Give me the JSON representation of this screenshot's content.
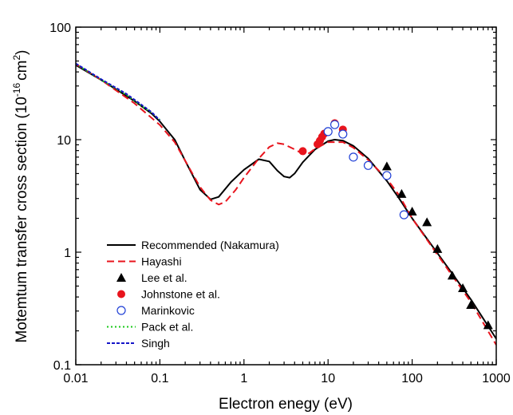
{
  "chart_data": {
    "type": "line",
    "title": "",
    "xlabel": "Electron enegy (eV)",
    "ylabel": {
      "main": "Motemtum transfer cross section (10",
      "exp1": "-16",
      "mid": "cm",
      "exp2": "2",
      "close": ")"
    },
    "x_scale": "log",
    "y_scale": "log",
    "xlim": [
      0.01,
      1000
    ],
    "ylim": [
      0.1,
      100
    ],
    "x_ticks": [
      {
        "value": 0.01,
        "label": "0.01"
      },
      {
        "value": 0.1,
        "label": "0.1"
      },
      {
        "value": 1,
        "label": "1"
      },
      {
        "value": 10,
        "label": "10"
      },
      {
        "value": 100,
        "label": "100"
      },
      {
        "value": 1000,
        "label": "1000"
      }
    ],
    "y_ticks": [
      {
        "value": 0.1,
        "label": "0.1"
      },
      {
        "value": 1,
        "label": "1"
      },
      {
        "value": 10,
        "label": "10"
      },
      {
        "value": 100,
        "label": "100"
      }
    ],
    "grid": false,
    "legend_position": "bottom-left",
    "series": [
      {
        "name": "Recommended (Nakamura)",
        "kind": "line",
        "style": "solid",
        "color": "#000000",
        "points": [
          [
            0.01,
            46
          ],
          [
            0.02,
            34
          ],
          [
            0.05,
            22
          ],
          [
            0.08,
            17
          ],
          [
            0.1,
            14.5
          ],
          [
            0.15,
            10
          ],
          [
            0.2,
            6.5
          ],
          [
            0.3,
            3.6
          ],
          [
            0.4,
            2.95
          ],
          [
            0.5,
            3.1
          ],
          [
            0.7,
            4.2
          ],
          [
            1,
            5.4
          ],
          [
            1.5,
            6.7
          ],
          [
            2,
            6.4
          ],
          [
            2.5,
            5.3
          ],
          [
            3,
            4.7
          ],
          [
            3.5,
            4.6
          ],
          [
            4,
            5.0
          ],
          [
            5,
            6.3
          ],
          [
            7,
            8.2
          ],
          [
            10,
            9.7
          ],
          [
            12,
            10
          ],
          [
            15,
            9.8
          ],
          [
            20,
            8.8
          ],
          [
            30,
            6.8
          ],
          [
            50,
            4.3
          ],
          [
            70,
            3.0
          ],
          [
            100,
            2.0
          ],
          [
            200,
            0.98
          ],
          [
            500,
            0.38
          ],
          [
            1000,
            0.17
          ]
        ]
      },
      {
        "name": "Hayashi",
        "kind": "line",
        "style": "dashed",
        "color": "#e8141d",
        "points": [
          [
            0.01,
            47
          ],
          [
            0.02,
            34
          ],
          [
            0.05,
            21
          ],
          [
            0.1,
            13.5
          ],
          [
            0.15,
            9.5
          ],
          [
            0.2,
            6.5
          ],
          [
            0.3,
            3.8
          ],
          [
            0.4,
            2.9
          ],
          [
            0.5,
            2.65
          ],
          [
            0.6,
            2.8
          ],
          [
            0.8,
            3.6
          ],
          [
            1,
            4.6
          ],
          [
            1.5,
            6.8
          ],
          [
            2,
            8.6
          ],
          [
            2.5,
            9.3
          ],
          [
            3,
            9.1
          ],
          [
            4,
            8.2
          ],
          [
            5,
            7.5
          ],
          [
            6,
            7.6
          ],
          [
            7,
            8.3
          ],
          [
            10,
            9.5
          ],
          [
            15,
            9.5
          ],
          [
            20,
            8.5
          ],
          [
            30,
            6.6
          ],
          [
            50,
            4.5
          ],
          [
            70,
            3.2
          ],
          [
            100,
            2.0
          ],
          [
            200,
            0.95
          ],
          [
            500,
            0.36
          ],
          [
            1000,
            0.15
          ]
        ]
      },
      {
        "name": "Lee et al.",
        "kind": "marker",
        "marker": "filled-triangle",
        "color": "#000000",
        "points": [
          [
            50,
            5.8
          ],
          [
            75,
            3.3
          ],
          [
            100,
            2.3
          ],
          [
            150,
            1.85
          ],
          [
            200,
            1.07
          ],
          [
            300,
            0.62
          ],
          [
            400,
            0.48
          ],
          [
            500,
            0.34
          ],
          [
            800,
            0.225
          ]
        ]
      },
      {
        "name": "Johnstone et al.",
        "kind": "marker",
        "marker": "filled-circle",
        "color": "#e8141d",
        "points": [
          [
            5,
            7.9
          ],
          [
            7.5,
            9.1
          ],
          [
            8,
            9.8
          ],
          [
            8.5,
            10.6
          ],
          [
            9,
            11.3
          ],
          [
            12,
            14.0
          ],
          [
            15,
            12.3
          ]
        ]
      },
      {
        "name": "Marinkovic",
        "kind": "marker",
        "marker": "open-circle",
        "color": "#1f3fd6",
        "points": [
          [
            10,
            11.8
          ],
          [
            12,
            13.6
          ],
          [
            15,
            11.2
          ],
          [
            20,
            7.0
          ],
          [
            30,
            5.9
          ],
          [
            50,
            4.8
          ],
          [
            80,
            2.15
          ]
        ]
      },
      {
        "name": "Pack et al.",
        "kind": "line",
        "style": "dotted",
        "color": "#19c819",
        "points": [
          [
            0.01,
            47
          ],
          [
            0.02,
            34
          ],
          [
            0.04,
            25
          ],
          [
            0.06,
            20
          ],
          [
            0.08,
            17.3
          ],
          [
            0.1,
            15
          ]
        ]
      },
      {
        "name": "Singh",
        "kind": "line",
        "style": "shortdash",
        "color": "#1414c8",
        "points": [
          [
            0.01,
            47.5
          ],
          [
            0.02,
            34.5
          ],
          [
            0.04,
            25.5
          ],
          [
            0.06,
            20.5
          ],
          [
            0.08,
            17.5
          ],
          [
            0.1,
            14.8
          ]
        ]
      }
    ]
  }
}
